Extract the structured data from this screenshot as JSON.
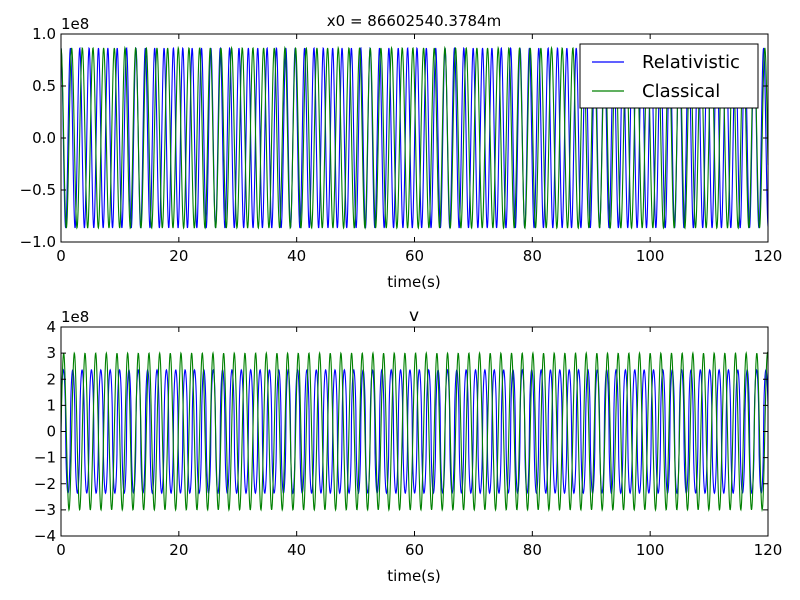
{
  "chart_data": [
    {
      "type": "line",
      "title": "x0 = 86602540.3784m",
      "xlabel": "time(s)",
      "ylabel": "",
      "offset_text": "1e8",
      "xlim": [
        0,
        120
      ],
      "ylim": [
        -1.0,
        1.0
      ],
      "xticks": [
        0,
        20,
        40,
        60,
        80,
        100,
        120
      ],
      "yticks": [
        -1.0,
        -0.5,
        0.0,
        0.5,
        1.0
      ],
      "ytick_labels": [
        "−1.0",
        "−0.5",
        "0.0",
        "0.5",
        "1.0"
      ],
      "grid": false,
      "legend_position": "top-right",
      "series": [
        {
          "name": "Relativistic",
          "color": "#0000ff",
          "amplitude": 0.866,
          "period": 1.59,
          "phase": 0,
          "waveform": "cosine"
        },
        {
          "name": "Classical",
          "color": "#008000",
          "amplitude": 0.866,
          "period": 1.81,
          "phase": 0,
          "waveform": "cosine"
        }
      ]
    },
    {
      "type": "line",
      "title": "v",
      "xlabel": "time(s)",
      "ylabel": "",
      "offset_text": "1e8",
      "xlim": [
        0,
        120
      ],
      "ylim": [
        -4,
        4
      ],
      "xticks": [
        0,
        20,
        40,
        60,
        80,
        100,
        120
      ],
      "yticks": [
        -4,
        -3,
        -2,
        -1,
        0,
        1,
        2,
        3,
        4
      ],
      "ytick_labels": [
        "−4",
        "−3",
        "−2",
        "−1",
        "0",
        "1",
        "2",
        "3",
        "4"
      ],
      "grid": false,
      "series": [
        {
          "color": "#0000ff",
          "amplitude": 2.36,
          "period": 1.59,
          "phase": 0,
          "waveform": "sine-flat"
        },
        {
          "color": "#008000",
          "amplitude": 3.0,
          "period": 1.81,
          "phase": 0,
          "waveform": "sine"
        }
      ]
    }
  ]
}
